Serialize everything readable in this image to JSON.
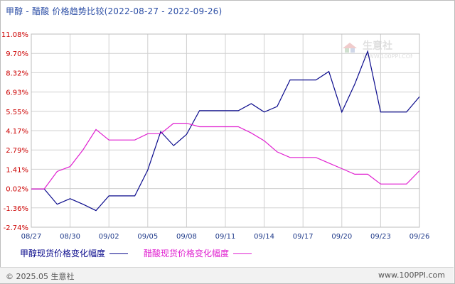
{
  "title": "甲醇 - 醋酸 价格趋势比较(2022-08-27 - 2022-09-26)",
  "footer": {
    "copyright": "© 2025.05 生意社",
    "site": "www.100PPI.com"
  },
  "watermark": {
    "name": "生意社",
    "url": "WWW.100PPI.COM"
  },
  "colors": {
    "series1": "#0a0a8c",
    "series2": "#e020d0",
    "grid": "#d0d0d0",
    "ytick": "#cc0000",
    "xtick": "#1f3a8a"
  },
  "chart_data": {
    "type": "line",
    "title": "甲醇 - 醋酸 价格趋势比较(2022-08-27 - 2022-09-26)",
    "xlabel": "",
    "ylabel": "",
    "ylim": [
      -2.74,
      11.08
    ],
    "yticks": [
      "11.08%",
      "9.70%",
      "8.32%",
      "6.93%",
      "5.55%",
      "4.17%",
      "2.79%",
      "1.41%",
      "0.02%",
      "-1.36%",
      "-2.74%"
    ],
    "x": [
      "08/27",
      "08/28",
      "08/29",
      "08/30",
      "08/31",
      "09/01",
      "09/02",
      "09/03",
      "09/04",
      "09/05",
      "09/06",
      "09/07",
      "09/08",
      "09/09",
      "09/10",
      "09/11",
      "09/12",
      "09/13",
      "09/14",
      "09/15",
      "09/16",
      "09/17",
      "09/18",
      "09/19",
      "09/20",
      "09/21",
      "09/22",
      "09/23",
      "09/24",
      "09/25",
      "09/26"
    ],
    "xtick_labels": [
      "08/27",
      "08/30",
      "09/02",
      "09/05",
      "09/08",
      "09/11",
      "09/14",
      "09/17",
      "09/20",
      "09/23",
      "09/26"
    ],
    "series": [
      {
        "name": "甲醇现货价格变化幅度",
        "values": [
          0.0,
          0.0,
          -1.1,
          -0.7,
          -1.1,
          -1.55,
          -0.5,
          -0.5,
          -0.5,
          1.35,
          4.1,
          3.1,
          3.9,
          5.6,
          5.6,
          5.6,
          5.6,
          6.1,
          5.5,
          5.9,
          7.8,
          7.8,
          7.8,
          8.4,
          5.5,
          7.5,
          9.85,
          5.5,
          5.5,
          5.5,
          6.6
        ]
      },
      {
        "name": "醋酸现货价格变化幅度",
        "values": [
          0.0,
          0.0,
          1.25,
          1.6,
          2.8,
          4.25,
          3.5,
          3.5,
          3.5,
          3.95,
          3.95,
          4.7,
          4.7,
          4.45,
          4.45,
          4.45,
          4.45,
          4.0,
          3.45,
          2.65,
          2.25,
          2.25,
          2.25,
          1.85,
          1.45,
          1.05,
          1.05,
          0.35,
          0.35,
          0.35,
          1.3
        ]
      }
    ]
  }
}
